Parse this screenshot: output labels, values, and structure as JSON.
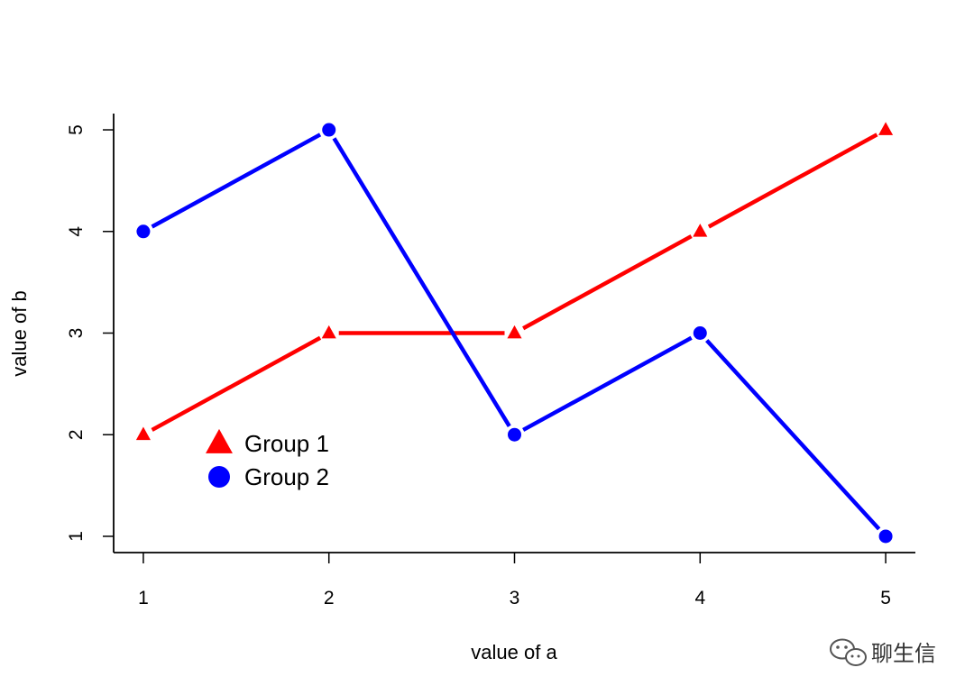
{
  "chart_data": {
    "type": "line",
    "x": [
      1,
      2,
      3,
      4,
      5
    ],
    "series": [
      {
        "name": "Group 1",
        "values": [
          2,
          3,
          3,
          4,
          5
        ],
        "color": "#ff0000",
        "marker": "triangle"
      },
      {
        "name": "Group 2",
        "values": [
          4,
          5,
          2,
          3,
          1
        ],
        "color": "#0000ff",
        "marker": "circle"
      }
    ],
    "xlabel": "value of a",
    "ylabel": "value of b",
    "xlim": [
      0.84,
      5.16
    ],
    "ylim": [
      0.84,
      5.16
    ],
    "xticks": [
      1,
      2,
      3,
      4,
      5
    ],
    "yticks": [
      1,
      2,
      3,
      4,
      5
    ],
    "grid": false,
    "legend": {
      "position": "bottom-left",
      "frame": false
    }
  },
  "watermark": {
    "text": "聊生信",
    "icon": "wechat-icon"
  }
}
